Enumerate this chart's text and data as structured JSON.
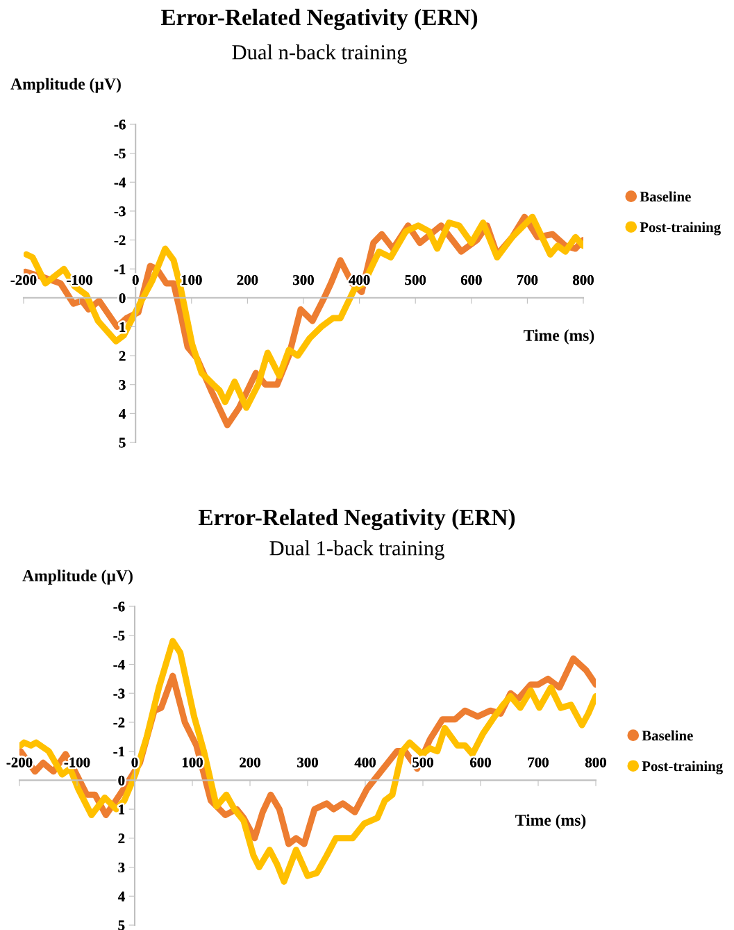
{
  "chart_data": [
    {
      "type": "line",
      "title": "Error-Related Negativity (ERN)",
      "subtitle": "Dual n-back training",
      "xlabel": "Time (ms)",
      "ylabel": "Amplitude (µV)",
      "xlim": [
        -200,
        800
      ],
      "ylim": [
        5,
        -6
      ],
      "xticks": [
        -200,
        -100,
        0,
        100,
        200,
        300,
        400,
        500,
        600,
        700,
        800
      ],
      "yticks": [
        -6,
        -5,
        -4,
        -3,
        -2,
        -1,
        0,
        1,
        2,
        3,
        4,
        5
      ],
      "legend": "right",
      "grid": false,
      "marker": "none",
      "line_style": "solid",
      "series": [
        {
          "name": "Baseline",
          "color": "#ed7d31",
          "x": [
            -197,
            -163,
            -134,
            -111,
            -96,
            -84,
            -65,
            -33,
            -16,
            5,
            26,
            38,
            55,
            68,
            80,
            93,
            110,
            135,
            164,
            185,
            215,
            232,
            253,
            274,
            295,
            316,
            337,
            349,
            366,
            387,
            404,
            425,
            440,
            460,
            487,
            508,
            546,
            582,
            610,
            628,
            646,
            673,
            695,
            718,
            745,
            768,
            786,
            800
          ],
          "values": [
            -0.9,
            -0.7,
            -0.5,
            0.2,
            0.1,
            0.4,
            0.1,
            1.0,
            0.7,
            0.5,
            -1.1,
            -1.0,
            -0.5,
            -0.5,
            0.5,
            1.7,
            2.1,
            3.2,
            4.4,
            3.8,
            2.6,
            3.0,
            3.0,
            2.0,
            0.4,
            0.8,
            0.0,
            -0.5,
            -1.3,
            -0.5,
            -0.2,
            -1.9,
            -2.2,
            -1.7,
            -2.5,
            -1.9,
            -2.5,
            -1.6,
            -2.0,
            -2.5,
            -1.5,
            -2.1,
            -2.8,
            -2.1,
            -2.2,
            -1.8,
            -1.7,
            -2.0
          ]
        },
        {
          "name": "Post-training",
          "color": "#ffc000",
          "x": [
            -195,
            -184,
            -161,
            -128,
            -109,
            -88,
            -67,
            -35,
            -21,
            5,
            30,
            53,
            68,
            80,
            101,
            118,
            139,
            150,
            160,
            177,
            198,
            219,
            236,
            257,
            274,
            290,
            311,
            332,
            353,
            366,
            391,
            408,
            425,
            435,
            456,
            483,
            505,
            524,
            539,
            560,
            578,
            600,
            621,
            646,
            673,
            709,
            741,
            754,
            768,
            786,
            800
          ],
          "values": [
            -1.5,
            -1.4,
            -0.5,
            -1.0,
            -0.4,
            -0.1,
            0.8,
            1.5,
            1.3,
            0.3,
            -0.6,
            -1.7,
            -1.3,
            -0.4,
            1.6,
            2.6,
            3.0,
            3.2,
            3.6,
            2.9,
            3.8,
            3.0,
            1.9,
            2.7,
            1.8,
            2.0,
            1.4,
            1.0,
            0.7,
            0.7,
            -0.3,
            -0.5,
            -1.2,
            -1.6,
            -1.4,
            -2.3,
            -2.5,
            -2.3,
            -1.7,
            -2.6,
            -2.5,
            -1.9,
            -2.6,
            -1.4,
            -2.1,
            -2.8,
            -1.5,
            -1.8,
            -1.6,
            -2.1,
            -1.8
          ]
        }
      ]
    },
    {
      "type": "line",
      "title": "Error-Related Negativity (ERN)",
      "subtitle": "Dual 1-back training",
      "xlabel": "Time (ms)",
      "ylabel": "Amplitude (µV)",
      "xlim": [
        -200,
        800
      ],
      "ylim": [
        5,
        -6
      ],
      "xticks": [
        -200,
        -100,
        0,
        100,
        200,
        300,
        400,
        500,
        600,
        700,
        800
      ],
      "yticks": [
        -6,
        -5,
        -4,
        -3,
        -2,
        -1,
        0,
        1,
        2,
        3,
        4,
        5
      ],
      "legend": "right",
      "grid": false,
      "marker": "none",
      "line_style": "solid",
      "series": [
        {
          "name": "Baseline",
          "color": "#ed7d31",
          "x": [
            -198,
            -173,
            -159,
            -141,
            -120,
            -106,
            -83,
            -69,
            -50,
            -36,
            -16,
            9,
            34,
            46,
            66,
            87,
            107,
            132,
            157,
            177,
            189,
            208,
            222,
            236,
            251,
            267,
            280,
            294,
            312,
            333,
            345,
            361,
            382,
            403,
            427,
            455,
            469,
            490,
            512,
            534,
            556,
            573,
            595,
            617,
            635,
            652,
            665,
            687,
            700,
            717,
            737,
            761,
            783,
            800
          ],
          "values": [
            -1.0,
            -0.3,
            -0.6,
            -0.3,
            -0.9,
            -0.4,
            0.5,
            0.5,
            1.2,
            0.8,
            0.2,
            -0.6,
            -2.4,
            -2.5,
            -3.6,
            -2.0,
            -1.2,
            0.7,
            1.2,
            1.0,
            1.3,
            2.0,
            1.1,
            0.5,
            1.0,
            2.2,
            2.0,
            2.2,
            1.0,
            0.8,
            1.0,
            0.8,
            1.1,
            0.3,
            -0.3,
            -1.0,
            -1.0,
            -0.4,
            -1.4,
            -2.1,
            -2.1,
            -2.4,
            -2.2,
            -2.4,
            -2.3,
            -3.0,
            -2.8,
            -3.3,
            -3.3,
            -3.5,
            -3.2,
            -4.2,
            -3.8,
            -3.3
          ]
        },
        {
          "name": "Post-training",
          "color": "#ffc000",
          "x": [
            -198,
            -192,
            -180,
            -171,
            -149,
            -126,
            -112,
            -98,
            -75,
            -52,
            -32,
            -18,
            1,
            21,
            42,
            66,
            79,
            103,
            120,
            142,
            159,
            173,
            189,
            206,
            216,
            234,
            247,
            259,
            280,
            300,
            316,
            333,
            349,
            378,
            398,
            421,
            434,
            447,
            464,
            477,
            499,
            512,
            525,
            538,
            560,
            573,
            586,
            604,
            621,
            639,
            652,
            669,
            687,
            702,
            722,
            739,
            757,
            776,
            787,
            800
          ],
          "values": [
            -1.2,
            -1.3,
            -1.2,
            -1.3,
            -1.0,
            -0.2,
            -0.4,
            0.3,
            1.2,
            0.6,
            1.0,
            0.7,
            -0.2,
            -1.5,
            -3.2,
            -4.8,
            -4.4,
            -2.2,
            -1.0,
            0.9,
            0.5,
            1.0,
            1.4,
            2.6,
            3.0,
            2.4,
            2.9,
            3.5,
            2.4,
            3.3,
            3.2,
            2.6,
            2.0,
            2.0,
            1.5,
            1.3,
            0.7,
            0.5,
            -1.0,
            -1.3,
            -0.9,
            -1.1,
            -1.0,
            -1.8,
            -1.2,
            -1.2,
            -0.9,
            -1.6,
            -2.1,
            -2.6,
            -2.9,
            -2.5,
            -3.1,
            -2.5,
            -3.2,
            -2.5,
            -2.6,
            -1.9,
            -2.3,
            -2.9
          ]
        }
      ]
    }
  ]
}
